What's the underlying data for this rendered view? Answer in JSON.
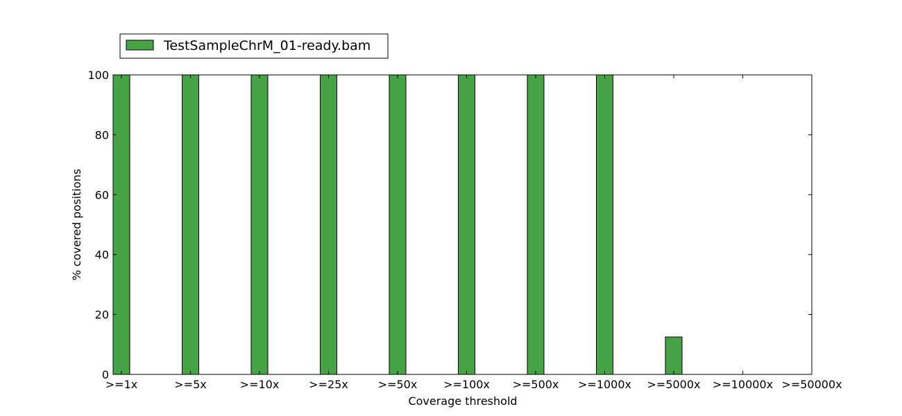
{
  "chart_data": {
    "type": "bar",
    "title": "",
    "xlabel": "Coverage threshold",
    "ylabel": "% covered positions",
    "ylim": [
      0,
      100
    ],
    "yticks": [
      0,
      20,
      40,
      60,
      80,
      100
    ],
    "categories": [
      ">=1x",
      ">=5x",
      ">=10x",
      ">=25x",
      ">=50x",
      ">=100x",
      ">=500x",
      ">=1000x",
      ">=5000x",
      ">=10000x",
      ">=50000x"
    ],
    "series": [
      {
        "name": "TestSampleChrM_01-ready.bam",
        "color": "#46a346",
        "values": [
          100,
          100,
          100,
          100,
          100,
          100,
          100,
          100,
          12.5,
          0,
          0
        ]
      }
    ],
    "grid": false,
    "legend_position": "top-left, above plot"
  }
}
